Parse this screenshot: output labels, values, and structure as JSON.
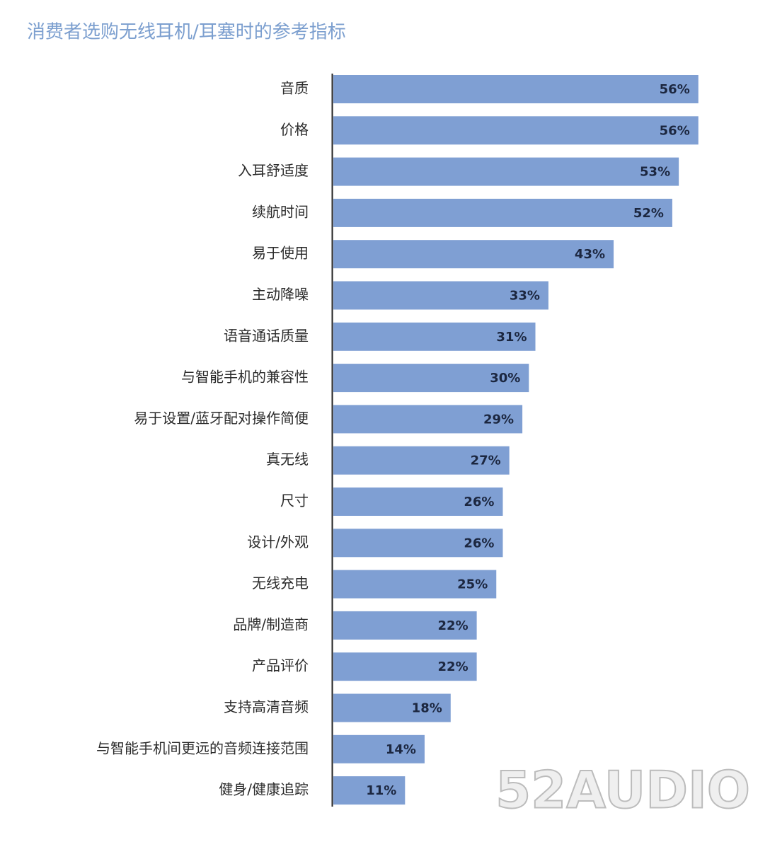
{
  "chart_data": {
    "type": "bar",
    "orientation": "horizontal",
    "title": "消费者选购无线耳机/耳塞时的参考指标",
    "categories": [
      "音质",
      "价格",
      "入耳舒适度",
      "续航时间",
      "易于使用",
      "主动降噪",
      "语音通话质量",
      "与智能手机的兼容性",
      "易于设置/蓝牙配对操作简便",
      "真无线",
      "尺寸",
      "设计/外观",
      "无线充电",
      "品牌/制造商",
      "产品评价",
      "支持高清音频",
      "与智能手机间更远的音频连接范围",
      "健身/健康追踪"
    ],
    "values": [
      56,
      56,
      53,
      52,
      43,
      33,
      31,
      30,
      29,
      27,
      26,
      26,
      25,
      22,
      22,
      18,
      14,
      11
    ],
    "value_labels": [
      "56%",
      "56%",
      "53%",
      "52%",
      "43%",
      "33%",
      "31%",
      "30%",
      "29%",
      "27%",
      "26%",
      "26%",
      "25%",
      "22%",
      "22%",
      "18%",
      "14%",
      "11%"
    ],
    "color": "#7f9fd3",
    "watermark": "52AUDIO"
  }
}
